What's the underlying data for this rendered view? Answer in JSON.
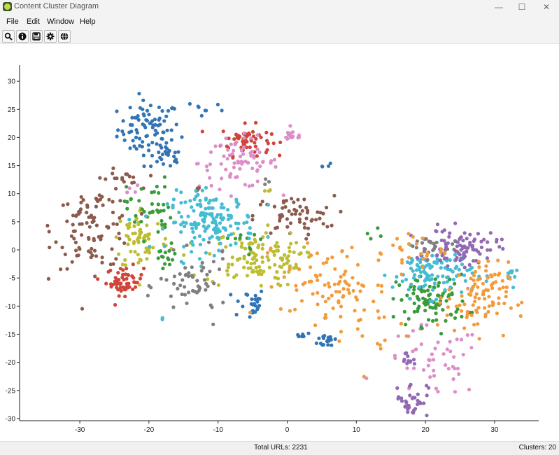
{
  "window": {
    "title": "Content Cluster Diagram",
    "controls": {
      "minimize": "—",
      "maximize": "☐",
      "close": "✕"
    }
  },
  "menu": {
    "items": [
      "File",
      "Edit",
      "Window",
      "Help"
    ]
  },
  "toolbar": {
    "buttons": [
      {
        "icon": "search-icon"
      },
      {
        "icon": "info-icon"
      },
      {
        "icon": "save-icon"
      },
      {
        "icon": "gear-icon"
      },
      {
        "icon": "globe-icon"
      }
    ]
  },
  "status": {
    "total": "Total URLs: 2231",
    "clusters": "Clusters: 20"
  },
  "chart_data": {
    "type": "scatter",
    "title": "",
    "xlabel": "",
    "ylabel": "",
    "xlim": [
      -38,
      36
    ],
    "ylim": [
      -30,
      33
    ],
    "xticks": [
      "-30",
      "-20",
      "-10",
      "0",
      "10",
      "20",
      "30"
    ],
    "yticks": [
      "30",
      "25",
      "20",
      "15",
      "10",
      "5",
      "0",
      "-5",
      "-10",
      "-15",
      "-20",
      "-25",
      "-30"
    ],
    "grid": false,
    "legend": "none",
    "total_points": 2231,
    "series": [
      {
        "color": "#3274b4",
        "clusters": [
          [
            -20,
            21.5,
            2.5,
            2.8,
            85
          ],
          [
            -17.5,
            16.5,
            1.3,
            1.2,
            22
          ],
          [
            -12,
            25,
            1.5,
            1,
            8
          ],
          [
            -5.5,
            -9.5,
            1.3,
            1.6,
            25
          ],
          [
            2.3,
            -15,
            0.8,
            0.4,
            6
          ],
          [
            6,
            -16,
            0.9,
            0.8,
            20
          ],
          [
            5.2,
            15,
            0.8,
            0.3,
            4
          ]
        ]
      },
      {
        "color": "#d0453a",
        "clusters": [
          [
            -6,
            19.5,
            2,
            1.5,
            60
          ],
          [
            -23.5,
            -5.5,
            1.5,
            1.4,
            55
          ]
        ]
      },
      {
        "color": "#dc8ec8",
        "clusters": [
          [
            -7,
            15.5,
            3.2,
            2.5,
            75
          ],
          [
            0.8,
            20.3,
            0.9,
            0.6,
            15
          ],
          [
            21,
            -20,
            4,
            3.5,
            50
          ],
          [
            -23,
            10.5,
            1,
            0.8,
            5
          ]
        ]
      },
      {
        "color": "#8c5a4c",
        "clusters": [
          [
            -28,
            4,
            3.2,
            4,
            100
          ],
          [
            -24,
            12.5,
            1.5,
            1,
            15
          ],
          [
            1,
            6,
            3.2,
            2,
            60
          ],
          [
            -13,
            10.5,
            0.8,
            0.5,
            4
          ]
        ]
      },
      {
        "color": "#bdbd33",
        "clusters": [
          [
            -21,
            2,
            2.2,
            3.2,
            70
          ],
          [
            -5,
            -1.5,
            3.8,
            2.8,
            110
          ],
          [
            0.5,
            -1.5,
            1.2,
            1.2,
            15
          ],
          [
            -2.8,
            10.5,
            0.4,
            0.3,
            3
          ]
        ]
      },
      {
        "color": "#3a9b3a",
        "clusters": [
          [
            -20,
            7.5,
            1.8,
            3,
            40
          ],
          [
            -17.5,
            -1.5,
            1,
            1.4,
            15
          ],
          [
            21,
            -9,
            2.8,
            2.5,
            95
          ],
          [
            -6,
            1.5,
            1.5,
            1.5,
            10
          ],
          [
            12,
            3,
            0.8,
            0.6,
            4
          ]
        ]
      },
      {
        "color": "#44bcd4",
        "clusters": [
          [
            -11,
            5,
            3.5,
            2.8,
            160
          ],
          [
            21,
            -4,
            3.2,
            2.4,
            110
          ],
          [
            32.5,
            -4,
            0.6,
            1.2,
            10
          ],
          [
            -18,
            -12,
            0.3,
            0.3,
            2
          ]
        ]
      },
      {
        "color": "#7f7f7f",
        "clusters": [
          [
            -13.5,
            -6.5,
            2.8,
            3,
            55
          ],
          [
            21,
            0.5,
            2.2,
            1.2,
            30
          ],
          [
            -3,
            12,
            0.5,
            0.5,
            3
          ]
        ]
      },
      {
        "color": "#9268b5",
        "clusters": [
          [
            25.5,
            0.5,
            2.8,
            1.8,
            85
          ],
          [
            18,
            -26.5,
            1.3,
            1.8,
            35
          ],
          [
            17.5,
            -20,
            0.8,
            1.2,
            10
          ]
        ]
      },
      {
        "color": "#f39b3c",
        "clusters": [
          [
            27.5,
            -8.5,
            2.5,
            3.5,
            95
          ],
          [
            6,
            -6,
            3.8,
            3.8,
            80
          ],
          [
            17.5,
            0,
            3,
            2,
            25
          ],
          [
            12.5,
            -14,
            3,
            4,
            20
          ]
        ]
      }
    ]
  }
}
